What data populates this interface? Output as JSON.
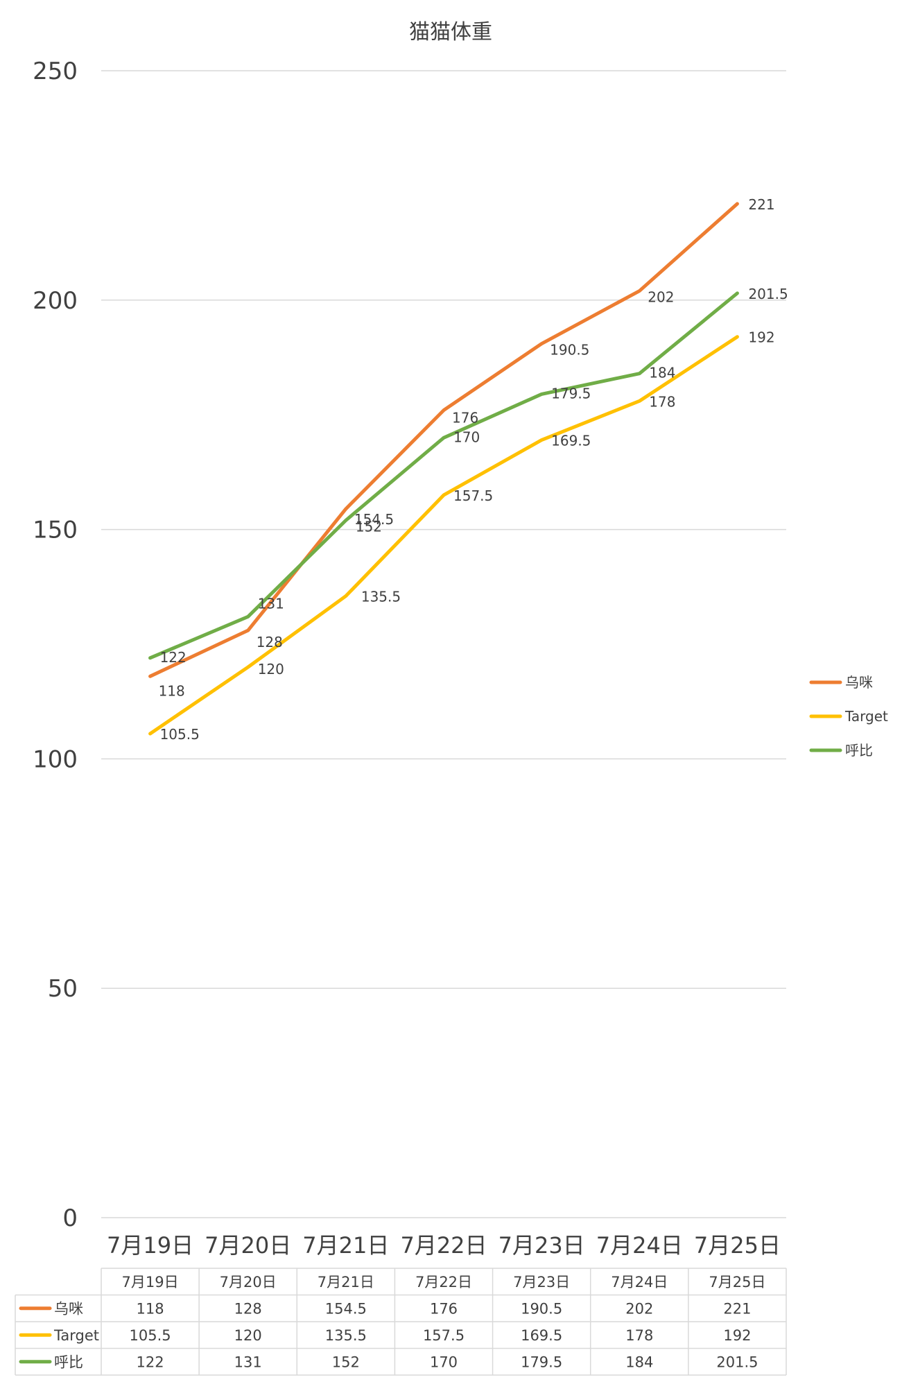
{
  "chart_data": {
    "type": "line",
    "title": "猫猫体重",
    "xlabel": "",
    "ylabel": "",
    "categories": [
      "7月19日",
      "7月20日",
      "7月21日",
      "7月22日",
      "7月23日",
      "7月24日",
      "7月25日"
    ],
    "series": [
      {
        "name": "乌咪",
        "color": "#ED7D31",
        "values": [
          118,
          128,
          154.5,
          176,
          190.5,
          202,
          221
        ]
      },
      {
        "name": "Target",
        "color": "#FFC000",
        "values": [
          105.5,
          120,
          135.5,
          157.5,
          169.5,
          178,
          192
        ]
      },
      {
        "name": "呼比",
        "color": "#70AD47",
        "values": [
          122,
          131,
          152,
          170,
          179.5,
          184,
          201.5
        ]
      }
    ],
    "ylim": [
      0,
      250
    ],
    "yticks": [
      0,
      50,
      100,
      150,
      200,
      250
    ],
    "grid": true,
    "legend_position": "right",
    "data_table": true
  }
}
